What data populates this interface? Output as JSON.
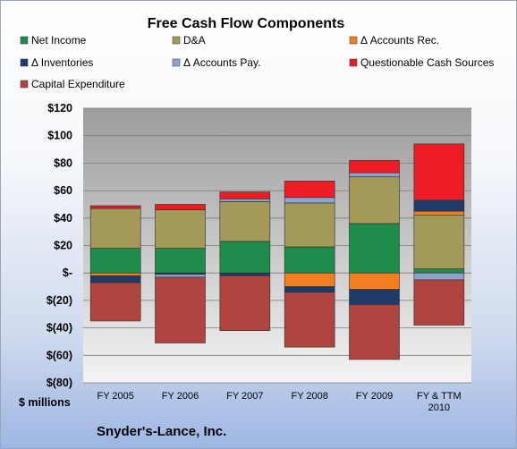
{
  "chart_data": {
    "type": "bar",
    "stacked": true,
    "title": "Free Cash Flow Components",
    "ylabel": "$ millions",
    "footer": "Snyder's-Lance, Inc.",
    "categories": [
      "FY 2005",
      "FY 2006",
      "FY 2007",
      "FY 2008",
      "FY 2009",
      "FY & TTM 2010"
    ],
    "ylim": [
      -80,
      120
    ],
    "yticks": [
      -80,
      -60,
      -40,
      -20,
      0,
      20,
      40,
      60,
      80,
      100,
      120
    ],
    "ytick_labels": [
      "$(80)",
      "$(60)",
      "$(40)",
      "$(20)",
      "$-",
      "$20",
      "$40",
      "$60",
      "$80",
      "$100",
      "$120"
    ],
    "grid": true,
    "legend_position": "top",
    "series": [
      {
        "name": "Net Income",
        "color": "#1e8c4a",
        "values": [
          18,
          18,
          23,
          19,
          36,
          3
        ]
      },
      {
        "name": "D&A",
        "color": "#a39a5a",
        "values": [
          29,
          28,
          29,
          32,
          34,
          39
        ]
      },
      {
        "name": "Δ Accounts Rec.",
        "color": "#f47f1e",
        "values": [
          -2,
          0,
          0,
          -10,
          -12,
          3
        ]
      },
      {
        "name": "Δ Inventories",
        "color": "#1f3b6b",
        "values": [
          -5,
          -1,
          -2,
          -4,
          -11,
          8
        ]
      },
      {
        "name": "Δ Accounts Pay.",
        "color": "#8ea4cf",
        "values": [
          0,
          -2,
          2,
          4,
          3,
          -5
        ]
      },
      {
        "name": "Questionable Cash Sources",
        "color": "#ee1c24",
        "values": [
          2,
          4,
          5,
          12,
          9,
          41
        ]
      },
      {
        "name": "Capital Expenditure",
        "color": "#b0443f",
        "values": [
          -28,
          -48,
          -40,
          -40,
          -40,
          -33
        ]
      }
    ]
  }
}
